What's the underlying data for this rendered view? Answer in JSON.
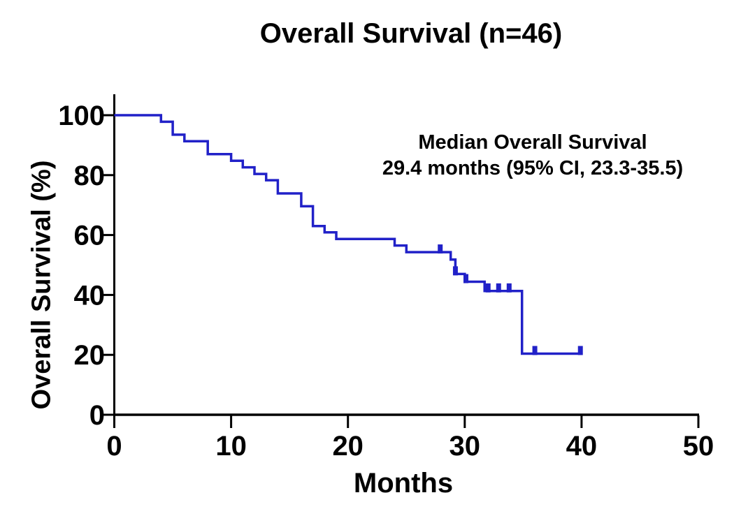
{
  "chart_data": {
    "type": "line",
    "subtype": "kaplan-meier-step-curve",
    "title": "Overall Survival (n=46)",
    "xlabel": "Months",
    "ylabel": "Overall Survival (%)",
    "n": 46,
    "median_os_months": 29.4,
    "ci95": [
      23.3,
      35.5
    ],
    "annotation": {
      "line1": "Median Overall Survival",
      "line2": "29.4 months (95% CI, 23.3-35.5)"
    },
    "xlim": [
      0,
      50
    ],
    "ylim": [
      0,
      100
    ],
    "xticks": [
      0,
      10,
      20,
      30,
      40,
      50
    ],
    "yticks": [
      0,
      20,
      40,
      60,
      80,
      100
    ],
    "grid": false,
    "legend": "none",
    "series": [
      {
        "name": "Overall Survival",
        "color": "#2121c8",
        "steps": [
          [
            0,
            100
          ],
          [
            4,
            97.8
          ],
          [
            5,
            93.5
          ],
          [
            6,
            91.3
          ],
          [
            8,
            87.0
          ],
          [
            10,
            84.8
          ],
          [
            11,
            82.6
          ],
          [
            12,
            80.4
          ],
          [
            13,
            78.3
          ],
          [
            14,
            73.9
          ],
          [
            16,
            69.6
          ],
          [
            17,
            63.0
          ],
          [
            18,
            60.9
          ],
          [
            19,
            58.7
          ],
          [
            24,
            56.5
          ],
          [
            25,
            54.3
          ],
          [
            28.8,
            51.8
          ],
          [
            29.2,
            47.0
          ],
          [
            30,
            44.4
          ],
          [
            31.7,
            41.3
          ],
          [
            34.9,
            20.4
          ]
        ],
        "end_month": 40,
        "censor_marks": [
          [
            27.9,
            54.3
          ],
          [
            29.2,
            47.0
          ],
          [
            30.1,
            44.4
          ],
          [
            32.0,
            41.3
          ],
          [
            32.9,
            41.3
          ],
          [
            33.8,
            41.3
          ],
          [
            36.0,
            20.4
          ],
          [
            39.9,
            20.4
          ]
        ]
      }
    ]
  },
  "colors": {
    "curve": "#2121c8",
    "axis": "#000000",
    "text": "#000000",
    "background": "#ffffff"
  }
}
